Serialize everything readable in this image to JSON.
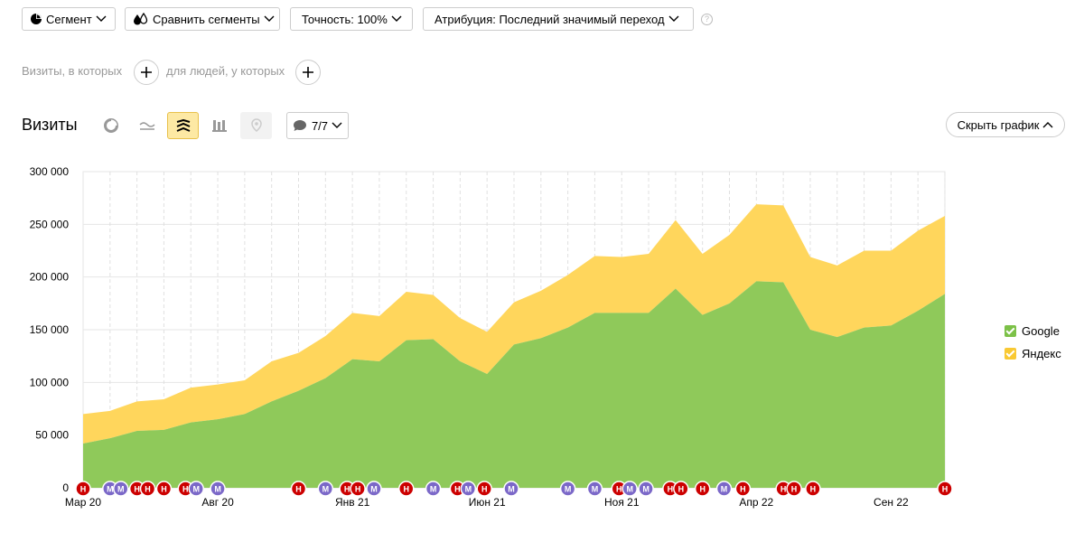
{
  "toolbar": {
    "segment_label": "Сегмент",
    "compare_label": "Сравнить сегменты",
    "accuracy_label": "Точность: 100%",
    "attribution_label": "Атрибуция: Последний значимый переход",
    "help_icon": "?"
  },
  "filters": {
    "visits_text": "Визиты, в которых",
    "people_text": "для людей, у которых"
  },
  "chart_header": {
    "title": "Визиты",
    "notes_label": "7/7",
    "hide_label": "Скрыть график"
  },
  "colors": {
    "google": "#8fc95a",
    "yandex": "#ffd65c",
    "note_red": "#cc0000",
    "note_purple": "#7b68c8"
  },
  "chart_data": {
    "type": "area",
    "stacked": true,
    "title": "",
    "xlabel": "",
    "ylabel": "",
    "ylim": [
      0,
      300000
    ],
    "y_ticks": [
      0,
      50000,
      100000,
      150000,
      200000,
      250000,
      300000
    ],
    "y_tick_labels": [
      "0",
      "50 000",
      "100 000",
      "150 000",
      "200 000",
      "250 000",
      "300 000"
    ],
    "x_tick_labels": [
      "Мар 20",
      "Авг 20",
      "Янв 21",
      "Июн 21",
      "Ноя 21",
      "Апр 22",
      "Сен 22"
    ],
    "x_tick_index": [
      0,
      5,
      10,
      15,
      20,
      25,
      30
    ],
    "x": [
      "2020-03",
      "2020-04",
      "2020-05",
      "2020-06",
      "2020-07",
      "2020-08",
      "2020-09",
      "2020-10",
      "2020-11",
      "2020-12",
      "2021-01",
      "2021-02",
      "2021-03",
      "2021-04",
      "2021-05",
      "2021-06",
      "2021-07",
      "2021-08",
      "2021-09",
      "2021-10",
      "2021-11",
      "2021-12",
      "2022-01",
      "2022-02",
      "2022-03",
      "2022-04",
      "2022-05",
      "2022-06",
      "2022-07",
      "2022-08",
      "2022-09",
      "2022-10",
      "2022-11"
    ],
    "series": [
      {
        "name": "Google",
        "values": [
          42000,
          47000,
          54000,
          55000,
          62000,
          65000,
          70000,
          82000,
          92000,
          104000,
          122000,
          120000,
          140000,
          141000,
          120000,
          108000,
          136000,
          142000,
          152000,
          166000,
          166000,
          166000,
          189000,
          164000,
          175000,
          196000,
          195000,
          150000,
          143000,
          152000,
          154000,
          168000,
          184000
        ]
      },
      {
        "name": "Яндекс",
        "values": [
          28000,
          26000,
          28000,
          29000,
          33000,
          33000,
          32000,
          38000,
          36000,
          40000,
          44000,
          43000,
          46000,
          42000,
          41000,
          40000,
          40000,
          45000,
          50000,
          54000,
          53000,
          56000,
          65000,
          58000,
          65000,
          73000,
          73000,
          69000,
          68000,
          73000,
          71000,
          76000,
          74000
        ]
      }
    ],
    "legend_position": "right",
    "grid": true,
    "notes": [
      {
        "x": 0,
        "kind": "Н"
      },
      {
        "x": 1,
        "kind": "М"
      },
      {
        "x": 1.4,
        "kind": "М"
      },
      {
        "x": 2,
        "kind": "Н"
      },
      {
        "x": 2.4,
        "kind": "Н"
      },
      {
        "x": 3,
        "kind": "Н"
      },
      {
        "x": 3.8,
        "kind": "Н"
      },
      {
        "x": 4.2,
        "kind": "М"
      },
      {
        "x": 5,
        "kind": "М"
      },
      {
        "x": 8,
        "kind": "Н"
      },
      {
        "x": 9,
        "kind": "М"
      },
      {
        "x": 9.8,
        "kind": "Н"
      },
      {
        "x": 10.2,
        "kind": "Н"
      },
      {
        "x": 10.8,
        "kind": "М"
      },
      {
        "x": 12,
        "kind": "Н"
      },
      {
        "x": 13,
        "kind": "М"
      },
      {
        "x": 13.9,
        "kind": "Н"
      },
      {
        "x": 14.3,
        "kind": "М"
      },
      {
        "x": 14.9,
        "kind": "Н"
      },
      {
        "x": 15.9,
        "kind": "М"
      },
      {
        "x": 18,
        "kind": "М"
      },
      {
        "x": 19,
        "kind": "М"
      },
      {
        "x": 19.9,
        "kind": "Н"
      },
      {
        "x": 20.3,
        "kind": "М"
      },
      {
        "x": 20.9,
        "kind": "М"
      },
      {
        "x": 21.8,
        "kind": "Н"
      },
      {
        "x": 22.2,
        "kind": "Н"
      },
      {
        "x": 23,
        "kind": "Н"
      },
      {
        "x": 23.8,
        "kind": "М"
      },
      {
        "x": 24.5,
        "kind": "Н"
      },
      {
        "x": 26,
        "kind": "Н"
      },
      {
        "x": 26.4,
        "kind": "Н"
      },
      {
        "x": 27.1,
        "kind": "Н"
      },
      {
        "x": 32,
        "kind": "Н"
      }
    ]
  }
}
